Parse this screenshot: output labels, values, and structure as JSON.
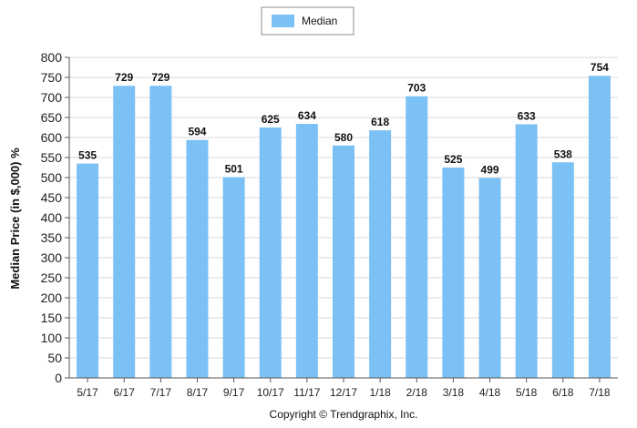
{
  "chart_data": {
    "type": "bar",
    "categories": [
      "5/17",
      "6/17",
      "7/17",
      "8/17",
      "9/17",
      "10/17",
      "11/17",
      "12/17",
      "1/18",
      "2/18",
      "3/18",
      "4/18",
      "5/18",
      "6/18",
      "7/18"
    ],
    "series": [
      {
        "name": "Median",
        "values": [
          535,
          729,
          729,
          594,
          501,
          625,
          634,
          580,
          618,
          703,
          525,
          499,
          633,
          538,
          754
        ],
        "color": "#7CC1F5"
      }
    ],
    "title": "",
    "xlabel": "",
    "ylabel": "Median Price (in $,000) %",
    "ylim": [
      0,
      800
    ],
    "yticks": [
      0,
      50,
      100,
      150,
      200,
      250,
      300,
      350,
      400,
      450,
      500,
      550,
      600,
      650,
      700,
      750,
      800
    ],
    "grid": true,
    "legend_position": "top-center",
    "data_labels": true
  },
  "footer": {
    "copyright": "Copyright © Trendgraphix, Inc."
  }
}
